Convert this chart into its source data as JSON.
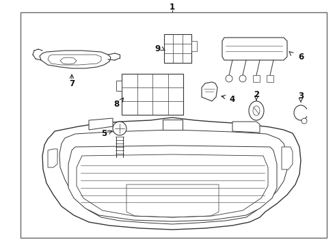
{
  "bg_color": "#ffffff",
  "border_color": "#666666",
  "line_color": "#333333",
  "fig_width": 4.9,
  "fig_height": 3.6,
  "dpi": 100
}
